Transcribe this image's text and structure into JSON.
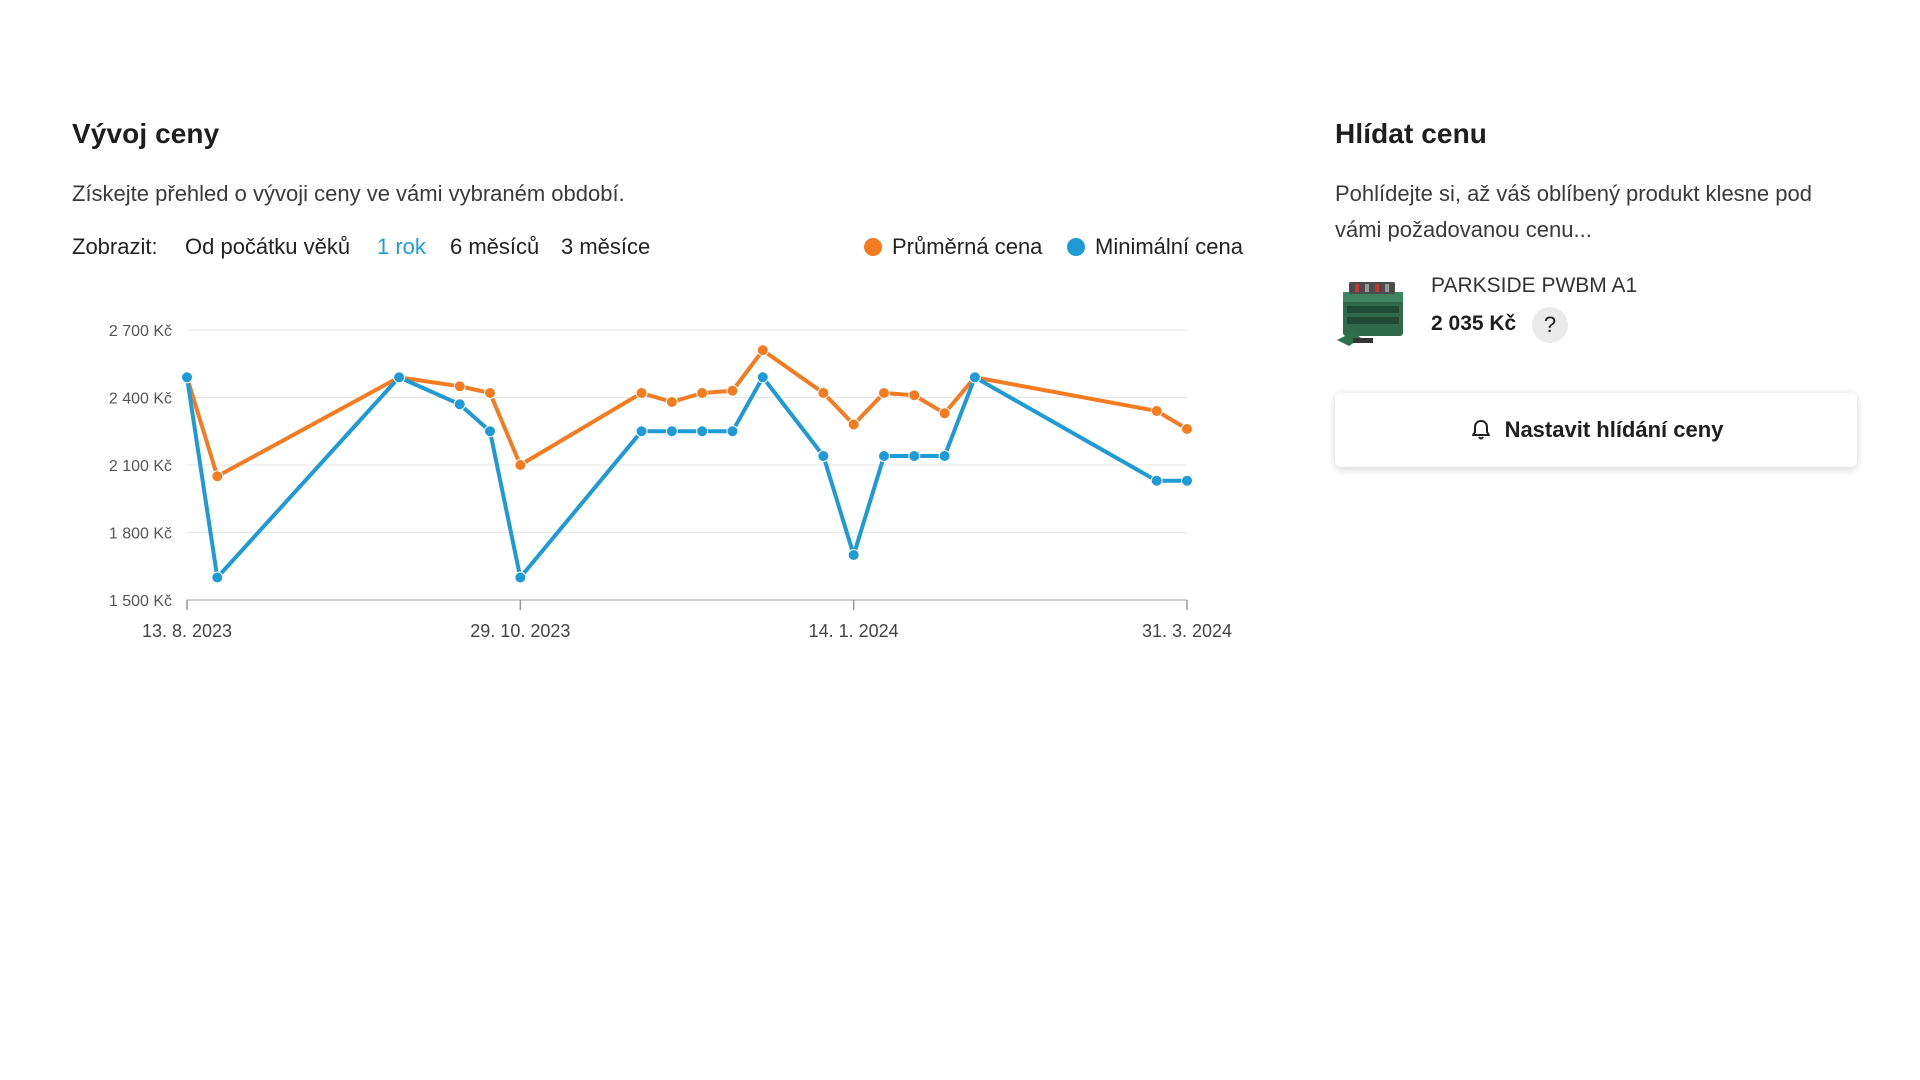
{
  "price_history": {
    "title": "Vývoj ceny",
    "description": "Získejte přehled o vývoji ceny ve vámi vybraném období.",
    "show_label": "Zobrazit:",
    "periods": [
      {
        "label": "Od počátku věků",
        "active": false
      },
      {
        "label": "1 rok",
        "active": true
      },
      {
        "label": "6 měsíců",
        "active": false
      },
      {
        "label": "3 měsíce",
        "active": false
      }
    ],
    "legend": [
      {
        "label": "Průměrná cena",
        "color": "#f47b20"
      },
      {
        "label": "Minimální cena",
        "color": "#1e9ad6"
      }
    ]
  },
  "chart_data": {
    "type": "line",
    "title": "",
    "xlabel": "",
    "ylabel": "",
    "x_tick_labels": [
      "13. 8. 2023",
      "29. 10. 2023",
      "14. 1. 2024",
      "31. 3. 2024"
    ],
    "y_tick_labels": [
      "2 700 Kč",
      "2 400 Kč",
      "2 100 Kč",
      "1 800 Kč",
      "1 500 Kč"
    ],
    "y_ticks": [
      2700,
      2400,
      2100,
      1800,
      1500
    ],
    "ylim": [
      1500,
      2700
    ],
    "x_range": [
      "2023-08-13",
      "2024-03-31"
    ],
    "grid": true,
    "series": [
      {
        "name": "Průměrná cena",
        "color": "#f47b20",
        "points": [
          [
            "2023-08-13",
            2490
          ],
          [
            "2023-08-20",
            2050
          ],
          [
            "2023-10-01",
            2490
          ],
          [
            "2023-10-15",
            2450
          ],
          [
            "2023-10-22",
            2420
          ],
          [
            "2023-10-29",
            2100
          ],
          [
            "2023-11-26",
            2420
          ],
          [
            "2023-12-03",
            2380
          ],
          [
            "2023-12-10",
            2420
          ],
          [
            "2023-12-17",
            2430
          ],
          [
            "2023-12-24",
            2610
          ],
          [
            "2024-01-07",
            2420
          ],
          [
            "2024-01-14",
            2280
          ],
          [
            "2024-01-21",
            2420
          ],
          [
            "2024-01-28",
            2410
          ],
          [
            "2024-02-04",
            2330
          ],
          [
            "2024-02-11",
            2490
          ],
          [
            "2024-03-24",
            2340
          ],
          [
            "2024-03-31",
            2260
          ]
        ]
      },
      {
        "name": "Minimální cena",
        "color": "#1e9ad6",
        "points": [
          [
            "2023-08-13",
            2490
          ],
          [
            "2023-08-20",
            1600
          ],
          [
            "2023-10-01",
            2490
          ],
          [
            "2023-10-15",
            2370
          ],
          [
            "2023-10-22",
            2250
          ],
          [
            "2023-10-29",
            1600
          ],
          [
            "2023-11-26",
            2250
          ],
          [
            "2023-12-03",
            2250
          ],
          [
            "2023-12-10",
            2250
          ],
          [
            "2023-12-17",
            2250
          ],
          [
            "2023-12-24",
            2490
          ],
          [
            "2024-01-07",
            2140
          ],
          [
            "2024-01-14",
            1700
          ],
          [
            "2024-01-21",
            2140
          ],
          [
            "2024-01-28",
            2140
          ],
          [
            "2024-02-04",
            2140
          ],
          [
            "2024-02-11",
            2490
          ],
          [
            "2024-03-24",
            2030
          ],
          [
            "2024-03-31",
            2030
          ]
        ]
      }
    ]
  },
  "watch": {
    "title": "Hlídat cenu",
    "description": "Pohlídejte si, až váš oblíbený produkt klesne pod vámi požadovanou cenu...",
    "product_name": "PARKSIDE PWBM A1",
    "product_price": "2 035 Kč",
    "help_label": "?",
    "button_label": "Nastavit hlídání ceny",
    "button_icon": "bell-icon"
  }
}
